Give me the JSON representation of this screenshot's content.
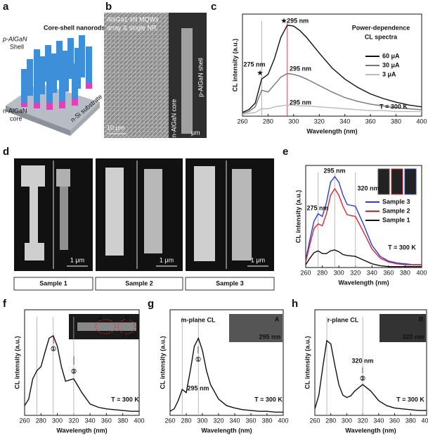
{
  "panels": {
    "a": {
      "label": "a",
      "texts": [
        "p-AlGaN",
        "Shell",
        "Core-shell nanorods",
        "n-AlGaN",
        "core",
        "n-Si substrate"
      ]
    },
    "b": {
      "label": "b",
      "texts": [
        "AlxGa1-xN MQWs",
        "array & single NR.",
        "10 μm",
        "p-AlGaN shell",
        "n-AlGaN core",
        "μm"
      ]
    },
    "d": {
      "label": "d",
      "samples": [
        "Sample 1",
        "Sample 2",
        "Sample 3"
      ],
      "scale": [
        "1 μm",
        "1 μm",
        "1 μm"
      ]
    }
  },
  "chart_data": [
    {
      "type": "line",
      "panel": "c",
      "xlabel": "Wavelength (nm)",
      "ylabel": "CL intensity (a.u.)",
      "x": [
        260,
        265,
        270,
        275,
        280,
        285,
        290,
        295,
        300,
        305,
        310,
        320,
        330,
        340,
        350,
        360,
        370,
        380,
        390,
        400
      ],
      "xlim": [
        260,
        400
      ],
      "xticks": [
        260,
        280,
        300,
        320,
        340,
        360,
        380,
        400
      ],
      "ylim": [
        0,
        1.1
      ],
      "vlines": [
        {
          "value": 275,
          "color": "#999999"
        },
        {
          "value": 295,
          "color": "#e0242c"
        }
      ],
      "series": [
        {
          "name": "60 μA",
          "color": "#111111",
          "values": [
            0.04,
            0.07,
            0.14,
            0.4,
            0.45,
            0.62,
            0.85,
            0.98,
            0.97,
            0.92,
            0.85,
            0.68,
            0.52,
            0.4,
            0.31,
            0.24,
            0.19,
            0.15,
            0.12,
            0.1
          ]
        },
        {
          "name": "30 μA",
          "color": "#777777",
          "values": [
            0.03,
            0.05,
            0.1,
            0.28,
            0.26,
            0.34,
            0.42,
            0.46,
            0.45,
            0.43,
            0.4,
            0.33,
            0.26,
            0.2,
            0.16,
            0.13,
            0.11,
            0.09,
            0.08,
            0.07
          ]
        },
        {
          "name": "3 μA",
          "color": "#bbbbbb",
          "values": [
            0.02,
            0.03,
            0.04,
            0.08,
            0.08,
            0.1,
            0.11,
            0.12,
            0.12,
            0.11,
            0.11,
            0.1,
            0.09,
            0.08,
            0.07,
            0.06,
            0.06,
            0.05,
            0.05,
            0.05
          ]
        }
      ],
      "annotations": [
        {
          "text": "★295 nm",
          "color": "#e0242c"
        },
        {
          "text": "★",
          "color": "#111111"
        },
        {
          "text": "275 nm",
          "color": "#333333"
        },
        {
          "text": "295 nm",
          "color": "#e0242c"
        },
        {
          "text": "295 nm",
          "color": "#e0242c"
        },
        {
          "text": "Power-dependence",
          "color": "#111111"
        },
        {
          "text": "CL spectra",
          "color": "#111111"
        },
        {
          "text": "T = 300 K",
          "color": "#111111"
        }
      ]
    },
    {
      "type": "line",
      "panel": "e",
      "xlabel": "Wavelength (nm)",
      "ylabel": "CL intensity (a.u.)",
      "x": [
        260,
        265,
        270,
        275,
        280,
        285,
        290,
        295,
        300,
        305,
        310,
        320,
        330,
        340,
        350,
        360,
        370,
        380,
        390,
        400
      ],
      "xlim": [
        260,
        400
      ],
      "xticks": [
        260,
        280,
        300,
        320,
        340,
        360,
        380,
        400
      ],
      "ylim": [
        0,
        1.1
      ],
      "vlines": [
        {
          "value": 275,
          "color": "#aaaaaa"
        },
        {
          "value": 295,
          "color": "#aaaaaa"
        },
        {
          "value": 320,
          "color": "#aaaaaa"
        }
      ],
      "series": [
        {
          "name": "Sample 3",
          "color": "#2a3fd0",
          "values": [
            0.08,
            0.3,
            0.5,
            0.58,
            0.55,
            0.7,
            0.92,
            0.98,
            0.92,
            0.78,
            0.68,
            0.66,
            0.46,
            0.24,
            0.12,
            0.07,
            0.05,
            0.04,
            0.03,
            0.03
          ]
        },
        {
          "name": "Sample 2",
          "color": "#e0242c",
          "values": [
            0.06,
            0.25,
            0.42,
            0.47,
            0.45,
            0.58,
            0.78,
            0.85,
            0.78,
            0.66,
            0.57,
            0.55,
            0.38,
            0.2,
            0.1,
            0.06,
            0.04,
            0.03,
            0.03,
            0.03
          ]
        },
        {
          "name": "Sample 1",
          "color": "#111111",
          "values": [
            0.03,
            0.1,
            0.16,
            0.18,
            0.15,
            0.15,
            0.18,
            0.19,
            0.17,
            0.14,
            0.13,
            0.12,
            0.08,
            0.04,
            0.02,
            0.01,
            0.01,
            0.01,
            0.01,
            0.01
          ]
        }
      ],
      "annotations": [
        {
          "text": "295 nm",
          "color": "#111111"
        },
        {
          "text": "275 nm",
          "color": "#111111"
        },
        {
          "text": "320 nm",
          "color": "#111111"
        },
        {
          "text": "T = 300 K",
          "color": "#111111"
        }
      ]
    },
    {
      "type": "line",
      "panel": "f",
      "xlabel": "Wavelength (nm)",
      "ylabel": "CL intensity (a.u.)",
      "x": [
        260,
        265,
        270,
        275,
        280,
        285,
        290,
        295,
        300,
        305,
        310,
        320,
        330,
        340,
        350,
        360,
        370,
        380,
        390,
        400
      ],
      "xlim": [
        260,
        400
      ],
      "xticks": [
        260,
        280,
        300,
        320,
        340,
        360,
        380,
        400
      ],
      "ylim": [
        0,
        1.3
      ],
      "vlines": [
        {
          "value": 275,
          "color": "#aaaaaa"
        },
        {
          "value": 295,
          "color": "#aaaaaa"
        },
        {
          "value": 320,
          "color": "#aaaaaa"
        }
      ],
      "series": [
        {
          "color": "#111111",
          "values": [
            0.12,
            0.2,
            0.45,
            0.55,
            0.6,
            0.78,
            0.95,
            0.98,
            0.85,
            0.6,
            0.42,
            0.45,
            0.28,
            0.14,
            0.1,
            0.08,
            0.07,
            0.06,
            0.05,
            0.05
          ]
        }
      ],
      "annotations": [
        {
          "text": "①",
          "color": "#111111"
        },
        {
          "text": "②",
          "color": "#111111"
        },
        {
          "text": "T = 300 K",
          "color": "#111111"
        },
        {
          "text": "A",
          "color": "#ffffff"
        },
        {
          "text": "B",
          "color": "#ffffff"
        },
        {
          "text": "1 μm",
          "color": "#ffffff"
        }
      ]
    },
    {
      "type": "line",
      "panel": "g",
      "xlabel": "Wavelength (nm)",
      "ylabel": "CL intensity (a.u.)",
      "x": [
        260,
        265,
        270,
        275,
        280,
        285,
        290,
        295,
        300,
        305,
        310,
        320,
        330,
        340,
        350,
        360,
        370,
        380,
        390,
        400
      ],
      "xlim": [
        260,
        400
      ],
      "xticks": [
        260,
        280,
        300,
        320,
        340,
        360,
        380,
        400
      ],
      "ylim": [
        0,
        1.3
      ],
      "vlines": [
        {
          "value": 275,
          "color": "#aaaaaa"
        },
        {
          "value": 295,
          "color": "#aaaaaa"
        }
      ],
      "series": [
        {
          "color": "#111111",
          "values": [
            0.05,
            0.08,
            0.18,
            0.32,
            0.28,
            0.55,
            0.85,
            0.95,
            0.8,
            0.55,
            0.38,
            0.2,
            0.12,
            0.09,
            0.07,
            0.06,
            0.05,
            0.05,
            0.04,
            0.04
          ]
        }
      ],
      "annotations": [
        {
          "text": "m-plane CL",
          "color": "#111111"
        },
        {
          "text": "①",
          "color": "#111111"
        },
        {
          "text": "295 nm",
          "color": "#111111"
        },
        {
          "text": "T = 300 K",
          "color": "#111111"
        },
        {
          "text": "A",
          "color": "#ffffff"
        },
        {
          "text": "295 nm",
          "color": "#ffffff"
        }
      ]
    },
    {
      "type": "line",
      "panel": "h",
      "xlabel": "Wavelength (nm)",
      "ylabel": "CL intensity (a.u.)",
      "x": [
        260,
        265,
        270,
        275,
        280,
        285,
        290,
        295,
        300,
        305,
        310,
        320,
        330,
        340,
        350,
        360,
        370,
        380,
        390,
        400
      ],
      "xlim": [
        260,
        400
      ],
      "xticks": [
        260,
        280,
        300,
        320,
        340,
        360,
        380,
        400
      ],
      "ylim": [
        0,
        1.3
      ],
      "vlines": [
        {
          "value": 275,
          "color": "#aaaaaa"
        },
        {
          "value": 320,
          "color": "#aaaaaa"
        }
      ],
      "series": [
        {
          "color": "#111111",
          "values": [
            0.08,
            0.25,
            0.6,
            0.92,
            0.88,
            0.62,
            0.38,
            0.25,
            0.22,
            0.24,
            0.3,
            0.38,
            0.3,
            0.18,
            0.12,
            0.09,
            0.08,
            0.07,
            0.06,
            0.06
          ]
        }
      ],
      "annotations": [
        {
          "text": "r-plane CL",
          "color": "#111111"
        },
        {
          "text": "320 nm",
          "color": "#111111"
        },
        {
          "text": "②",
          "color": "#111111"
        },
        {
          "text": "T = 300 K",
          "color": "#111111"
        },
        {
          "text": "B",
          "color": "#ffffff"
        },
        {
          "text": "320 nm",
          "color": "#ffffff"
        }
      ]
    }
  ]
}
